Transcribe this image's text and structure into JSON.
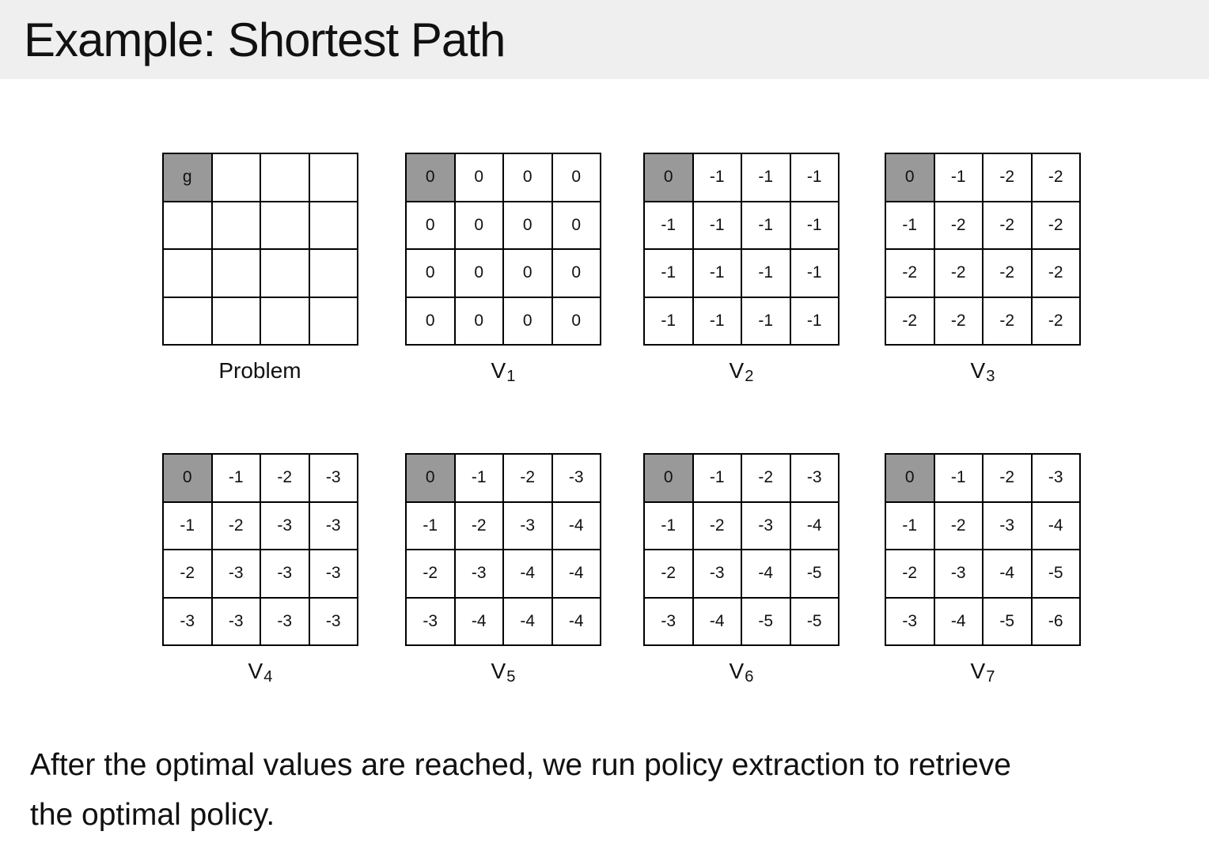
{
  "slide": {
    "title": "Example: Shortest Path",
    "caption_lines": [
      "After the optimal values are reached, we run policy extraction to retrieve",
      "the optimal policy."
    ]
  },
  "colors": {
    "title_band_bg": "#efefef",
    "goal_cell_bg": "#999999",
    "grid_line": "#000000",
    "cell_bg": "#ffffff",
    "text": "#111111"
  },
  "figures": [
    {
      "id": "problem",
      "label_main": "Problem",
      "label_sub": "",
      "goal_cell": {
        "row": 0,
        "col": 0
      },
      "cells": [
        [
          "g",
          "",
          "",
          ""
        ],
        [
          "",
          "",
          "",
          ""
        ],
        [
          "",
          "",
          "",
          ""
        ],
        [
          "",
          "",
          "",
          ""
        ]
      ]
    },
    {
      "id": "v1",
      "label_main": "V",
      "label_sub": "1",
      "goal_cell": {
        "row": 0,
        "col": 0
      },
      "cells": [
        [
          "0",
          "0",
          "0",
          "0"
        ],
        [
          "0",
          "0",
          "0",
          "0"
        ],
        [
          "0",
          "0",
          "0",
          "0"
        ],
        [
          "0",
          "0",
          "0",
          "0"
        ]
      ]
    },
    {
      "id": "v2",
      "label_main": "V",
      "label_sub": "2",
      "goal_cell": {
        "row": 0,
        "col": 0
      },
      "cells": [
        [
          "0",
          "-1",
          "-1",
          "-1"
        ],
        [
          "-1",
          "-1",
          "-1",
          "-1"
        ],
        [
          "-1",
          "-1",
          "-1",
          "-1"
        ],
        [
          "-1",
          "-1",
          "-1",
          "-1"
        ]
      ]
    },
    {
      "id": "v3",
      "label_main": "V",
      "label_sub": "3",
      "goal_cell": {
        "row": 0,
        "col": 0
      },
      "cells": [
        [
          "0",
          "-1",
          "-2",
          "-2"
        ],
        [
          "-1",
          "-2",
          "-2",
          "-2"
        ],
        [
          "-2",
          "-2",
          "-2",
          "-2"
        ],
        [
          "-2",
          "-2",
          "-2",
          "-2"
        ]
      ]
    },
    {
      "id": "v4",
      "label_main": "V",
      "label_sub": "4",
      "goal_cell": {
        "row": 0,
        "col": 0
      },
      "cells": [
        [
          "0",
          "-1",
          "-2",
          "-3"
        ],
        [
          "-1",
          "-2",
          "-3",
          "-3"
        ],
        [
          "-2",
          "-3",
          "-3",
          "-3"
        ],
        [
          "-3",
          "-3",
          "-3",
          "-3"
        ]
      ]
    },
    {
      "id": "v5",
      "label_main": "V",
      "label_sub": "5",
      "goal_cell": {
        "row": 0,
        "col": 0
      },
      "cells": [
        [
          "0",
          "-1",
          "-2",
          "-3"
        ],
        [
          "-1",
          "-2",
          "-3",
          "-4"
        ],
        [
          "-2",
          "-3",
          "-4",
          "-4"
        ],
        [
          "-3",
          "-4",
          "-4",
          "-4"
        ]
      ]
    },
    {
      "id": "v6",
      "label_main": "V",
      "label_sub": "6",
      "goal_cell": {
        "row": 0,
        "col": 0
      },
      "cells": [
        [
          "0",
          "-1",
          "-2",
          "-3"
        ],
        [
          "-1",
          "-2",
          "-3",
          "-4"
        ],
        [
          "-2",
          "-3",
          "-4",
          "-5"
        ],
        [
          "-3",
          "-4",
          "-5",
          "-5"
        ]
      ]
    },
    {
      "id": "v7",
      "label_main": "V",
      "label_sub": "7",
      "goal_cell": {
        "row": 0,
        "col": 0
      },
      "cells": [
        [
          "0",
          "-1",
          "-2",
          "-3"
        ],
        [
          "-1",
          "-2",
          "-3",
          "-4"
        ],
        [
          "-2",
          "-3",
          "-4",
          "-5"
        ],
        [
          "-3",
          "-4",
          "-5",
          "-6"
        ]
      ]
    }
  ]
}
